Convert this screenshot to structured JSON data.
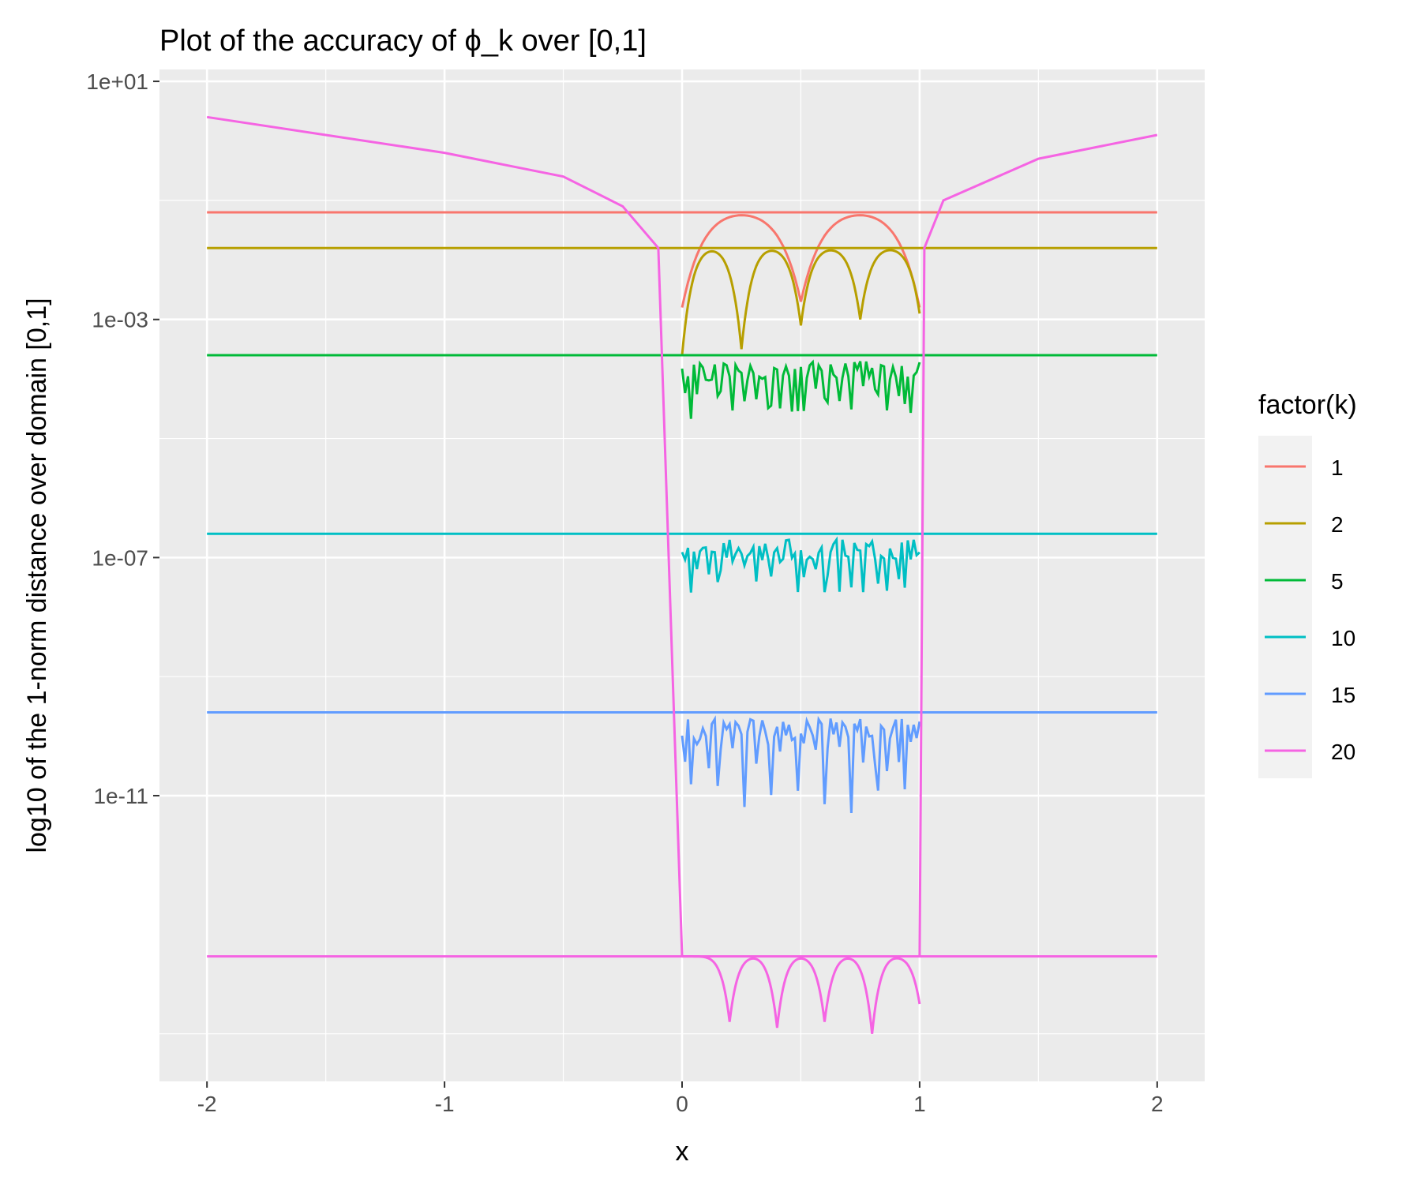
{
  "chart_data": {
    "type": "line",
    "title": "Plot of the accuracy of ϕ_k over [0,1]",
    "xlabel": "x",
    "ylabel": "log10 of the 1-norm distance over domain [0,1]",
    "x_ticks": [
      "-2",
      "-1",
      "0",
      "1",
      "2"
    ],
    "x_tick_values": [
      -2,
      -1,
      0,
      1,
      2
    ],
    "y_ticks": [
      "1e+01",
      "1e-03",
      "1e-07",
      "1e-11"
    ],
    "y_tick_values": [
      1,
      -3,
      -7,
      -11
    ],
    "xlim": [
      -2.2,
      2.2
    ],
    "ylim_log10": [
      -15.8,
      1.2
    ],
    "legend": {
      "title": "factor(k)",
      "position": "right"
    },
    "series": [
      {
        "name": "1",
        "color": "#F8766D",
        "level_log10": -1.2,
        "inner_profile": "dome",
        "cusps": [
          0,
          0.5,
          1
        ],
        "cusp_depths": [
          -2.8,
          -2.7,
          -2.8
        ],
        "n_arcs": 2
      },
      {
        "name": "2",
        "color": "#B79F00",
        "level_log10": -1.8,
        "inner_profile": "dome",
        "cusps": [
          0,
          0.25,
          0.5,
          0.75,
          1
        ],
        "cusp_depths": [
          -3.6,
          -3.5,
          -3.1,
          -3.0,
          -2.9
        ],
        "n_arcs": 4
      },
      {
        "name": "5",
        "color": "#00BA38",
        "level_log10": -3.6,
        "inner_profile": "spiky",
        "spike_min_log10": -4.7
      },
      {
        "name": "10",
        "color": "#00BFC4",
        "level_log10": -6.6,
        "inner_profile": "spiky",
        "spike_min_log10": -7.6
      },
      {
        "name": "15",
        "color": "#619CFF",
        "level_log10": -9.6,
        "inner_profile": "spiky",
        "spike_min_log10": -11.3
      },
      {
        "name": "20",
        "color": "#F564E3",
        "level_log10": -13.7,
        "inner_profile": "dome",
        "cusps": [
          0,
          0.2,
          0.4,
          0.6,
          0.8,
          1
        ],
        "cusp_depths": [
          -13.7,
          -14.8,
          -14.9,
          -14.8,
          -15.0,
          -14.5
        ],
        "n_arcs": 5,
        "outer_curve_log10": [
          [
            -2,
            0.4
          ],
          [
            -1.5,
            0.1
          ],
          [
            -1,
            -0.2
          ],
          [
            -0.5,
            -0.6
          ],
          [
            -0.25,
            -1.1
          ],
          [
            -0.1,
            -1.8
          ],
          [
            0,
            -13.7
          ],
          [
            1,
            -13.7
          ],
          [
            1.02,
            -1.8
          ],
          [
            1.1,
            -1.0
          ],
          [
            1.5,
            -0.3
          ],
          [
            2,
            0.1
          ]
        ]
      }
    ]
  }
}
